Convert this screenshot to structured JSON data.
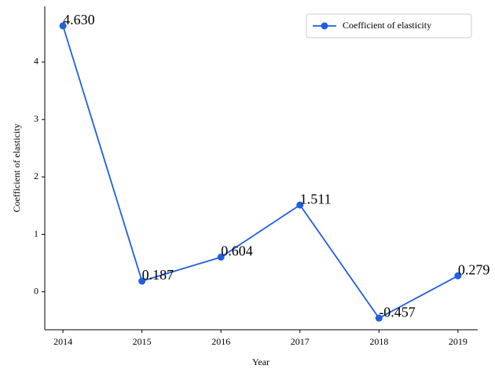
{
  "chart_data": {
    "type": "line",
    "x_label": "Year",
    "y_label": "Coefficient of elasticity",
    "x": [
      2014,
      2015,
      2016,
      2017,
      2018,
      2019
    ],
    "series": [
      {
        "name": "Coefficient of elasticity",
        "color": "#1f5fe0",
        "values": [
          4.63,
          0.187,
          0.604,
          1.511,
          -0.457,
          0.279
        ],
        "value_labels": [
          "4.630",
          "0.187",
          "0.604",
          "1.511",
          "-0.457",
          "0.279"
        ]
      }
    ],
    "xlim": [
      2013.77,
      2019.25
    ],
    "xticks": [
      2014,
      2015,
      2016,
      2017,
      2018,
      2019
    ],
    "ylim": [
      -0.66,
      4.97
    ],
    "yticks": [
      0,
      1,
      2,
      3,
      4
    ],
    "legend": "upper right",
    "grid": false
  }
}
